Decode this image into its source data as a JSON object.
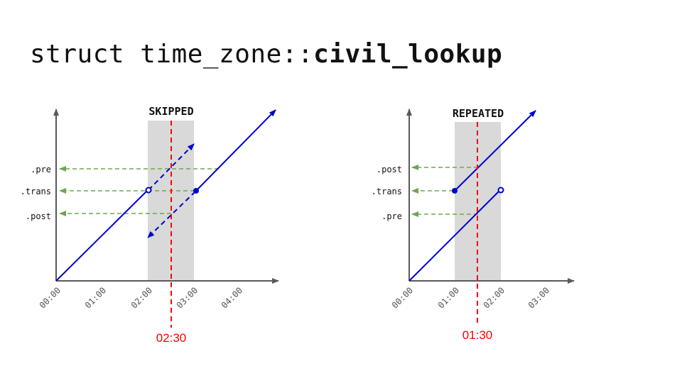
{
  "title": {
    "prefix": "struct time_zone::",
    "bold": "civil_lookup"
  },
  "colors": {
    "line": "#0000cc",
    "guide": "#6aa84f",
    "marker": "#ff0000",
    "band": "#d9d9d9",
    "axis": "#595959"
  },
  "skipped": {
    "heading": "SKIPPED",
    "y_labels": {
      "pre": ".pre",
      "trans": ".trans",
      "post": ".post"
    },
    "x_ticks": [
      "00:00",
      "01:00",
      "02:00",
      "03:00",
      "04:00"
    ],
    "marker_label": "02:30"
  },
  "repeated": {
    "heading": "REPEATED",
    "y_labels": {
      "post": ".post",
      "trans": ".trans",
      "pre": ".pre"
    },
    "x_ticks": [
      "00:00",
      "01:00",
      "02:00",
      "03:00"
    ],
    "marker_label": "01:30"
  }
}
